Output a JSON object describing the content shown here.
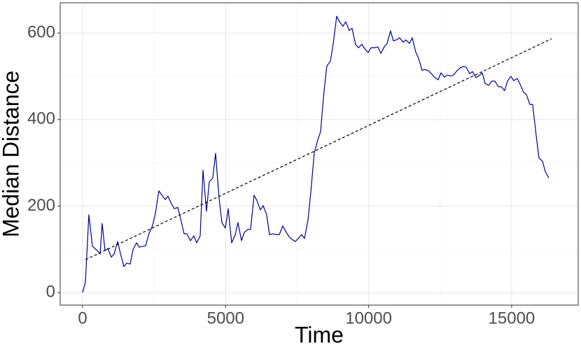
{
  "chart_data": {
    "type": "line",
    "x_label": "Time",
    "y_label": "Median Distance",
    "xlim": [
      -783,
      17327
    ],
    "ylim": [
      -29,
      670
    ],
    "xticks": [
      0,
      5000,
      10000,
      15000
    ],
    "yticks": [
      0,
      200,
      400,
      600
    ],
    "grid": true,
    "x": [
      0,
      98,
      220,
      343,
      514,
      612,
      685,
      783,
      881,
      1003,
      1101,
      1224,
      1321,
      1444,
      1542,
      1664,
      1762,
      1884,
      1982,
      2104,
      2202,
      2325,
      2447,
      2545,
      2667,
      2765,
      2888,
      2985,
      3108,
      3206,
      3328,
      3426,
      3548,
      3646,
      3768,
      3891,
      3989,
      4111,
      4209,
      4331,
      4429,
      4551,
      4649,
      4772,
      4870,
      4992,
      5090,
      5212,
      5335,
      5432,
      5555,
      5653,
      5775,
      5873,
      5995,
      6093,
      6216,
      6314,
      6436,
      6534,
      6656,
      6779,
      6877,
      6999,
      7097,
      7219,
      7317,
      7439,
      7537,
      7659,
      7757,
      7880,
      7977,
      8100,
      8222,
      8320,
      8442,
      8540,
      8663,
      8760,
      8883,
      8981,
      9103,
      9201,
      9323,
      9421,
      9543,
      9641,
      9764,
      9861,
      9984,
      10082,
      10204,
      10327,
      10425,
      10547,
      10645,
      10767,
      10865,
      10988,
      11085,
      11208,
      11306,
      11428,
      11526,
      11648,
      11746,
      11868,
      11966,
      12088,
      12211,
      12309,
      12431,
      12529,
      12651,
      12749,
      12871,
      12969,
      13091,
      13189,
      13312,
      13410,
      13532,
      13630,
      13752,
      13850,
      13973,
      14070,
      14193,
      14315,
      14413,
      14535,
      14633,
      14756,
      14853,
      14976,
      15074,
      15196,
      15294,
      15416,
      15514,
      15637,
      15734,
      15857,
      15955,
      16077,
      16175,
      16298
    ],
    "series": [
      {
        "color": "#00008b",
        "values": [
          0,
          24,
          180,
          107,
          97,
          89,
          160,
          97,
          102,
          82,
          89,
          118,
          91,
          60,
          68,
          66,
          99,
          115,
          105,
          107,
          108,
          137,
          155,
          183,
          235,
          226,
          215,
          223,
          205,
          194,
          197,
          171,
          136,
          136,
          120,
          131,
          115,
          131,
          283,
          188,
          256,
          265,
          322,
          218,
          162,
          149,
          194,
          115,
          133,
          162,
          120,
          139,
          146,
          146,
          225,
          213,
          191,
          201,
          180,
          134,
          136,
          134,
          134,
          154,
          142,
          129,
          123,
          118,
          125,
          134,
          125,
          167,
          231,
          323,
          353,
          372,
          466,
          524,
          535,
          574,
          639,
          626,
          616,
          626,
          606,
          611,
          574,
          566,
          574,
          564,
          555,
          566,
          566,
          568,
          553,
          568,
          576,
          605,
          582,
          585,
          589,
          579,
          584,
          576,
          589,
          556,
          542,
          514,
          516,
          513,
          505,
          497,
          492,
          508,
          498,
          503,
          501,
          503,
          513,
          519,
          523,
          521,
          506,
          511,
          497,
          501,
          508,
          484,
          479,
          489,
          489,
          476,
          476,
          467,
          489,
          500,
          490,
          495,
          482,
          463,
          458,
          435,
          435,
          364,
          311,
          304,
          280,
          265
        ]
      }
    ],
    "trend_line": {
      "x": [
        100,
        16400
      ],
      "values": [
        76,
        587
      ],
      "color": "#000000",
      "dashed": true
    }
  }
}
